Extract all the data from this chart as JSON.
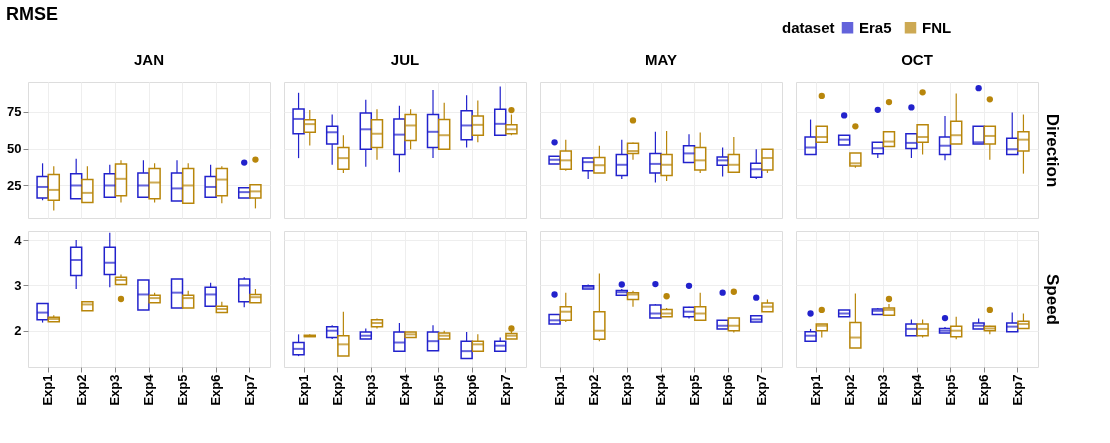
{
  "chart_data": [
    {
      "type": "box",
      "title": "JAN",
      "annotations": [
        "RMSE"
      ],
      "legend": "top right",
      "legend_title": "dataset",
      "grid": true,
      "tick_labels": "y",
      "categories": [
        "Exp1",
        "Exp2",
        "Exp3",
        "Exp4",
        "Exp5",
        "Exp6",
        "Exp7"
      ],
      "ylim": [
        3,
        95
      ],
      "yticks": [
        25,
        50,
        75
      ],
      "series": [
        {
          "name": "Era5",
          "color": "#2222cc",
          "boxes": [
            {
              "low": 15,
              "q1": 16.5,
              "median": 24,
              "q3": 31,
              "high": 40
            },
            {
              "low": 16,
              "q1": 16,
              "median": 25,
              "q3": 33,
              "high": 43
            },
            {
              "low": 17,
              "q1": 17,
              "median": 25,
              "q3": 33,
              "high": 39
            },
            {
              "low": 17,
              "q1": 17,
              "median": 25,
              "q3": 33.5,
              "high": 42
            },
            {
              "low": 14.5,
              "q1": 14.5,
              "median": 23,
              "q3": 33.5,
              "high": 42
            },
            {
              "low": 17,
              "q1": 17,
              "median": 24,
              "q3": 31,
              "high": 39
            },
            {
              "low": 16.5,
              "q1": 16.5,
              "median": 20.5,
              "q3": 23.5,
              "high": 23.5,
              "outliers": [
                40.5
              ]
            }
          ]
        },
        {
          "name": "FNL",
          "color": "#b8860b",
          "boxes": [
            {
              "low": 8,
              "q1": 15,
              "median": 22,
              "q3": 32.5,
              "high": 38
            },
            {
              "low": 13.5,
              "q1": 13.5,
              "median": 20,
              "q3": 29,
              "high": 38
            },
            {
              "low": 13.5,
              "q1": 18,
              "median": 29.5,
              "q3": 39.5,
              "high": 42
            },
            {
              "low": 13.5,
              "q1": 16,
              "median": 27,
              "q3": 36.5,
              "high": 40
            },
            {
              "low": 13,
              "q1": 13,
              "median": 25,
              "q3": 36.5,
              "high": 40
            },
            {
              "low": 13,
              "q1": 18,
              "median": 29,
              "q3": 36.5,
              "high": 38
            },
            {
              "low": 9.5,
              "q1": 16.5,
              "median": 21,
              "q3": 25.5,
              "high": 25.5,
              "outliers": [
                42.5
              ]
            }
          ]
        }
      ]
    },
    {
      "type": "box",
      "title": "JUL",
      "grid": true,
      "tick_labels": false,
      "categories": [
        "Exp1",
        "Exp2",
        "Exp3",
        "Exp4",
        "Exp5",
        "Exp6",
        "Exp7"
      ],
      "ylim": [
        3,
        95
      ],
      "yticks": [
        25,
        50,
        75
      ],
      "series": [
        {
          "name": "Era5",
          "color": "#2222cc",
          "boxes": [
            {
              "low": 43.5,
              "q1": 60,
              "median": 70,
              "q3": 76.7,
              "high": 87.7
            },
            {
              "low": 39,
              "q1": 53,
              "median": 61,
              "q3": 65,
              "high": 73
            },
            {
              "low": 37.7,
              "q1": 49.5,
              "median": 63,
              "q3": 74,
              "high": 83
            },
            {
              "low": 34,
              "q1": 46,
              "median": 59.4,
              "q3": 70,
              "high": 79
            },
            {
              "low": 43.6,
              "q1": 50.7,
              "median": 61.3,
              "q3": 73,
              "high": 89.6
            },
            {
              "low": 50.7,
              "q1": 56,
              "median": 65.6,
              "q3": 75.5,
              "high": 86
            },
            {
              "low": 59,
              "q1": 59,
              "median": 66.7,
              "q3": 76.6,
              "high": 92
            }
          ]
        },
        {
          "name": "FNL",
          "color": "#b8860b",
          "boxes": [
            {
              "low": 52,
              "q1": 61,
              "median": 66.5,
              "q3": 69.5,
              "high": 76
            },
            {
              "low": 33.5,
              "q1": 36,
              "median": 43.5,
              "q3": 50.7,
              "high": 59
            },
            {
              "low": 42.4,
              "q1": 50.7,
              "median": 60,
              "q3": 69.5,
              "high": 76.6
            },
            {
              "low": 49.5,
              "q1": 55.4,
              "median": 65.6,
              "q3": 73,
              "high": 76.6
            },
            {
              "low": 49.5,
              "q1": 49.5,
              "median": 59,
              "q3": 69.6,
              "high": 81
            },
            {
              "low": 54.2,
              "q1": 59,
              "median": 66,
              "q3": 72,
              "high": 82.5
            },
            {
              "low": 59,
              "q1": 60,
              "median": 63,
              "q3": 66,
              "high": 73,
              "outliers": [
                76
              ]
            }
          ]
        }
      ]
    },
    {
      "type": "box",
      "title": "MAY",
      "grid": true,
      "tick_labels": false,
      "categories": [
        "Exp1",
        "Exp2",
        "Exp3",
        "Exp4",
        "Exp5",
        "Exp6",
        "Exp7"
      ],
      "ylim": [
        3,
        95
      ],
      "yticks": [
        25,
        50,
        75
      ],
      "series": [
        {
          "name": "Era5",
          "color": "#2222cc",
          "boxes": [
            {
              "low": 39.6,
              "q1": 39.6,
              "median": 42.4,
              "q3": 44.8,
              "high": 44.8,
              "outliers": [
                54.2
              ]
            },
            {
              "low": 29.4,
              "q1": 35,
              "median": 40.8,
              "q3": 43.6,
              "high": 43.6
            },
            {
              "low": 29.4,
              "q1": 31.8,
              "median": 39,
              "q3": 46,
              "high": 56
            },
            {
              "low": 27,
              "q1": 33.5,
              "median": 39.6,
              "q3": 46.7,
              "high": 61.3
            },
            {
              "low": 40.5,
              "q1": 40.5,
              "median": 46.7,
              "q3": 51.9,
              "high": 59.7
            },
            {
              "low": 31,
              "q1": 38.7,
              "median": 42,
              "q3": 44.3,
              "high": 50.7
            },
            {
              "low": 29.4,
              "q1": 30.6,
              "median": 36,
              "q3": 40,
              "high": 49.5
            }
          ]
        },
        {
          "name": "FNL",
          "color": "#b8860b",
          "boxes": [
            {
              "low": 35,
              "q1": 36,
              "median": 42,
              "q3": 48.3,
              "high": 56
            },
            {
              "low": 33.5,
              "q1": 33.5,
              "median": 38.7,
              "q3": 43.9,
              "high": 51.9
            },
            {
              "low": 42.4,
              "q1": 46.7,
              "median": 48.3,
              "q3": 53.5,
              "high": 54,
              "outliers": [
                69
              ]
            },
            {
              "low": 28,
              "q1": 31.8,
              "median": 39,
              "q3": 46,
              "high": 61.8
            },
            {
              "low": 33.5,
              "q1": 35.4,
              "median": 42,
              "q3": 50.7,
              "high": 60.8
            },
            {
              "low": 34,
              "q1": 34,
              "median": 39,
              "q3": 46,
              "high": 57.8
            },
            {
              "low": 33.5,
              "q1": 35.4,
              "median": 43.6,
              "q3": 49.5,
              "high": 49.5
            }
          ]
        }
      ]
    },
    {
      "type": "box",
      "title": "OCT",
      "y2label": "Direction",
      "grid": true,
      "tick_labels": false,
      "categories": [
        "Exp1",
        "Exp2",
        "Exp3",
        "Exp4",
        "Exp5",
        "Exp6",
        "Exp7"
      ],
      "ylim": [
        3,
        95
      ],
      "yticks": [
        25,
        50,
        75
      ],
      "series": [
        {
          "name": "Era5",
          "color": "#2222cc",
          "boxes": [
            {
              "low": 46,
              "q1": 46,
              "median": 50.7,
              "q3": 57.8,
              "high": 69.6
            },
            {
              "low": 52.3,
              "q1": 52.3,
              "median": 56,
              "q3": 59,
              "high": 59,
              "outliers": [
                72.4
              ]
            },
            {
              "low": 43.6,
              "q1": 46.5,
              "median": 50.2,
              "q3": 54.2,
              "high": 54.2,
              "outliers": [
                76.2
              ]
            },
            {
              "low": 43.6,
              "q1": 50,
              "median": 53.8,
              "q3": 60,
              "high": 60,
              "outliers": [
                77.8
              ]
            },
            {
              "low": 42,
              "q1": 46,
              "median": 51.9,
              "q3": 57.8,
              "high": 72
            },
            {
              "low": 53,
              "q1": 53,
              "median": 54.2,
              "q3": 65,
              "high": 65,
              "outliers": [
                90.8
              ]
            },
            {
              "low": 46,
              "q1": 46,
              "median": 49.5,
              "q3": 57,
              "high": 74.3
            }
          ]
        },
        {
          "name": "FNL",
          "color": "#b8860b",
          "boxes": [
            {
              "low": 54.2,
              "q1": 54.2,
              "median": 57.8,
              "q3": 65,
              "high": 65,
              "outliers": [
                85.6
              ]
            },
            {
              "low": 37,
              "q1": 38.2,
              "median": 40,
              "q3": 47,
              "high": 47,
              "outliers": [
                65
              ]
            },
            {
              "low": 51.4,
              "q1": 51.4,
              "median": 54.7,
              "q3": 61.3,
              "high": 61.3,
              "outliers": [
                81.4
              ]
            },
            {
              "low": 46,
              "q1": 54.2,
              "median": 57.8,
              "q3": 66,
              "high": 66,
              "outliers": [
                88
              ]
            },
            {
              "low": 53,
              "q1": 53,
              "median": 59,
              "q3": 68.4,
              "high": 87.3
            },
            {
              "low": 42.4,
              "q1": 53,
              "median": 58.5,
              "q3": 65,
              "high": 65,
              "outliers": [
                83.3
              ]
            },
            {
              "low": 33,
              "q1": 48.3,
              "median": 56,
              "q3": 61.3,
              "high": 73
            }
          ]
        }
      ]
    },
    {
      "type": "box",
      "grid": true,
      "categories": [
        "Exp1",
        "Exp2",
        "Exp3",
        "Exp4",
        "Exp5",
        "Exp6",
        "Exp7"
      ],
      "ylim": [
        1.2,
        4.2
      ],
      "yticks": [
        2,
        3,
        4
      ],
      "series": [
        {
          "name": "Era5",
          "color": "#2222cc",
          "boxes": [
            {
              "low": 2.18,
              "q1": 2.24,
              "median": 2.4,
              "q3": 2.6,
              "high": 2.6
            },
            {
              "low": 2.92,
              "q1": 3.22,
              "median": 3.56,
              "q3": 3.84,
              "high": 4.0
            },
            {
              "low": 2.96,
              "q1": 3.24,
              "median": 3.5,
              "q3": 3.84,
              "high": 4.16
            },
            {
              "low": 2.46,
              "q1": 2.46,
              "median": 2.8,
              "q3": 3.12,
              "high": 3.12
            },
            {
              "low": 2.5,
              "q1": 2.5,
              "median": 2.84,
              "q3": 3.14,
              "high": 3.14
            },
            {
              "low": 2.54,
              "q1": 2.54,
              "median": 2.8,
              "q3": 2.96,
              "high": 3.06
            },
            {
              "low": 2.52,
              "q1": 2.64,
              "median": 3.0,
              "q3": 3.14,
              "high": 3.18
            }
          ]
        },
        {
          "name": "FNL",
          "color": "#b8860b",
          "boxes": [
            {
              "low": 2.2,
              "q1": 2.2,
              "median": 2.26,
              "q3": 2.3,
              "high": 2.34
            },
            {
              "low": 2.44,
              "q1": 2.44,
              "median": 2.58,
              "q3": 2.64,
              "high": 2.64
            },
            {
              "low": 3.02,
              "q1": 3.02,
              "median": 3.12,
              "q3": 3.18,
              "high": 3.24,
              "outliers": [
                2.7
              ]
            },
            {
              "low": 2.62,
              "q1": 2.62,
              "median": 2.72,
              "q3": 2.78,
              "high": 2.84
            },
            {
              "low": 2.5,
              "q1": 2.5,
              "median": 2.72,
              "q3": 2.78,
              "high": 2.88
            },
            {
              "low": 2.4,
              "q1": 2.4,
              "median": 2.48,
              "q3": 2.54,
              "high": 2.64
            },
            {
              "low": 2.62,
              "q1": 2.62,
              "median": 2.74,
              "q3": 2.8,
              "high": 2.92
            }
          ]
        }
      ]
    },
    {
      "type": "box",
      "grid": true,
      "tick_labels": "x",
      "categories": [
        "Exp1",
        "Exp2",
        "Exp3",
        "Exp4",
        "Exp5",
        "Exp6",
        "Exp7"
      ],
      "ylim": [
        1.2,
        4.2
      ],
      "yticks": [
        2,
        3,
        4
      ],
      "series": [
        {
          "name": "Era5",
          "color": "#2222cc",
          "boxes": [
            {
              "low": 1.44,
              "q1": 1.47,
              "median": 1.6,
              "q3": 1.74,
              "high": 1.92
            },
            {
              "low": 1.82,
              "q1": 1.85,
              "median": 2.0,
              "q3": 2.09,
              "high": 2.12
            },
            {
              "low": 1.82,
              "q1": 1.82,
              "median": 1.89,
              "q3": 1.97,
              "high": 2.05
            },
            {
              "low": 1.55,
              "q1": 1.55,
              "median": 1.74,
              "q3": 1.97,
              "high": 2.17
            },
            {
              "low": 1.56,
              "q1": 1.56,
              "median": 1.77,
              "q3": 1.97,
              "high": 2.12
            },
            {
              "low": 1.39,
              "q1": 1.39,
              "median": 1.55,
              "q3": 1.77,
              "high": 1.97
            },
            {
              "low": 1.55,
              "q1": 1.55,
              "median": 1.67,
              "q3": 1.77,
              "high": 1.85
            }
          ]
        },
        {
          "name": "FNL",
          "color": "#b8860b",
          "boxes": [
            {
              "low": 1.86,
              "q1": 1.87,
              "median": 1.88,
              "q3": 1.9,
              "high": 1.92
            },
            {
              "low": 1.44,
              "q1": 1.44,
              "median": 1.7,
              "q3": 1.89,
              "high": 2.42
            },
            {
              "low": 2.05,
              "q1": 2.09,
              "median": 2.17,
              "q3": 2.24,
              "high": 2.27
            },
            {
              "low": 1.85,
              "q1": 1.85,
              "median": 1.92,
              "q3": 1.97,
              "high": 1.97
            },
            {
              "low": 1.82,
              "q1": 1.82,
              "median": 1.89,
              "q3": 1.95,
              "high": 2.0
            },
            {
              "low": 1.55,
              "q1": 1.55,
              "median": 1.7,
              "q3": 1.77,
              "high": 1.92
            },
            {
              "low": 1.82,
              "q1": 1.82,
              "median": 1.89,
              "q3": 1.94,
              "high": 2.0,
              "outliers": [
                2.05
              ]
            }
          ]
        }
      ]
    },
    {
      "type": "box",
      "grid": true,
      "tick_labels": "x",
      "categories": [
        "Exp1",
        "Exp2",
        "Exp3",
        "Exp4",
        "Exp5",
        "Exp6",
        "Exp7"
      ],
      "ylim": [
        1.2,
        4.2
      ],
      "yticks": [
        2,
        3,
        4
      ],
      "series": [
        {
          "name": "Era5",
          "color": "#2222cc",
          "boxes": [
            {
              "low": 2.15,
              "q1": 2.15,
              "median": 2.23,
              "q3": 2.36,
              "high": 2.36,
              "outliers": [
                2.8
              ]
            },
            {
              "low": 2.92,
              "q1": 2.92,
              "median": 2.97,
              "q3": 2.99,
              "high": 3.02
            },
            {
              "low": 2.78,
              "q1": 2.78,
              "median": 2.85,
              "q3": 2.89,
              "high": 2.92,
              "outliers": [
                3.02
              ]
            },
            {
              "low": 2.28,
              "q1": 2.28,
              "median": 2.38,
              "q3": 2.57,
              "high": 2.59,
              "outliers": [
                3.03
              ]
            },
            {
              "low": 2.27,
              "q1": 2.31,
              "median": 2.42,
              "q3": 2.52,
              "high": 2.53,
              "outliers": [
                2.99
              ]
            },
            {
              "low": 2.04,
              "q1": 2.04,
              "median": 2.11,
              "q3": 2.23,
              "high": 2.23,
              "outliers": [
                2.84
              ]
            },
            {
              "low": 2.19,
              "q1": 2.19,
              "median": 2.25,
              "q3": 2.33,
              "high": 2.33,
              "outliers": [
                2.73
              ]
            }
          ]
        },
        {
          "name": "FNL",
          "color": "#b8860b",
          "boxes": [
            {
              "low": 2.19,
              "q1": 2.23,
              "median": 2.42,
              "q3": 2.53,
              "high": 2.84
            },
            {
              "low": 1.77,
              "q1": 1.81,
              "median": 2.0,
              "q3": 2.42,
              "high": 3.26
            },
            {
              "low": 2.53,
              "q1": 2.69,
              "median": 2.8,
              "q3": 2.84,
              "high": 2.88
            },
            {
              "low": 2.31,
              "q1": 2.31,
              "median": 2.38,
              "q3": 2.47,
              "high": 2.5,
              "outliers": [
                2.76
              ]
            },
            {
              "low": 2.23,
              "q1": 2.23,
              "median": 2.38,
              "q3": 2.53,
              "high": 2.84
            },
            {
              "low": 1.96,
              "q1": 2.0,
              "median": 2.11,
              "q3": 2.28,
              "high": 2.28,
              "outliers": [
                2.86
              ]
            },
            {
              "low": 2.42,
              "q1": 2.42,
              "median": 2.53,
              "q3": 2.61,
              "high": 2.69
            }
          ]
        }
      ]
    },
    {
      "type": "box",
      "y2label": "Speed",
      "grid": true,
      "tick_labels": "x",
      "categories": [
        "Exp1",
        "Exp2",
        "Exp3",
        "Exp4",
        "Exp5",
        "Exp6",
        "Exp7"
      ],
      "ylim": [
        1.2,
        4.2
      ],
      "yticks": [
        2,
        3,
        4
      ],
      "series": [
        {
          "name": "Era5",
          "color": "#2222cc",
          "boxes": [
            {
              "low": 1.77,
              "q1": 1.77,
              "median": 1.89,
              "q3": 1.98,
              "high": 2.04,
              "outliers": [
                2.38
              ]
            },
            {
              "low": 2.31,
              "q1": 2.31,
              "median": 2.38,
              "q3": 2.46,
              "high": 2.46
            },
            {
              "low": 2.36,
              "q1": 2.36,
              "median": 2.44,
              "q3": 2.48,
              "high": 2.5
            },
            {
              "low": 1.89,
              "q1": 1.89,
              "median": 2.04,
              "q3": 2.15,
              "high": 2.25
            },
            {
              "low": 1.95,
              "q1": 1.95,
              "median": 2.0,
              "q3": 2.05,
              "high": 2.08,
              "outliers": [
                2.28
              ]
            },
            {
              "low": 2.04,
              "q1": 2.04,
              "median": 2.11,
              "q3": 2.17,
              "high": 2.27
            },
            {
              "low": 1.98,
              "q1": 1.98,
              "median": 2.09,
              "q3": 2.17,
              "high": 2.4
            }
          ]
        },
        {
          "name": "FNL",
          "color": "#b8860b",
          "boxes": [
            {
              "low": 1.85,
              "q1": 2.0,
              "median": 2.11,
              "q3": 2.15,
              "high": 2.15,
              "outliers": [
                2.46
              ]
            },
            {
              "low": 1.62,
              "q1": 1.62,
              "median": 1.85,
              "q3": 2.18,
              "high": 2.82
            },
            {
              "low": 2.34,
              "q1": 2.34,
              "median": 2.46,
              "q3": 2.5,
              "high": 2.59,
              "outliers": [
                2.7
              ]
            },
            {
              "low": 1.85,
              "q1": 1.89,
              "median": 2.04,
              "q3": 2.15,
              "high": 2.25
            },
            {
              "low": 1.81,
              "q1": 1.87,
              "median": 2.0,
              "q3": 2.1,
              "high": 2.31
            },
            {
              "low": 1.92,
              "q1": 2.0,
              "median": 2.05,
              "q3": 2.1,
              "high": 2.11,
              "outliers": [
                2.46
              ]
            },
            {
              "low": 2.05,
              "q1": 2.05,
              "median": 2.15,
              "q3": 2.21,
              "high": 2.38
            }
          ]
        }
      ]
    }
  ]
}
